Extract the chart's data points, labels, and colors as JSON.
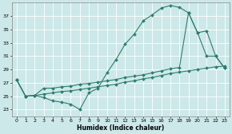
{
  "xlabel": "Humidex (Indice chaleur)",
  "bg_color": "#cce8e8",
  "grid_color": "#ffffff",
  "line_color": "#2e7d6e",
  "x_ticks": [
    0,
    1,
    2,
    3,
    4,
    5,
    6,
    7,
    8,
    9,
    10,
    11,
    12,
    13,
    14,
    15,
    16,
    17,
    18,
    19,
    20,
    21,
    22,
    23
  ],
  "y_ticks": [
    23,
    25,
    27,
    29,
    31,
    33,
    35,
    37
  ],
  "xlim": [
    -0.5,
    23.5
  ],
  "ylim": [
    22.0,
    39.0
  ],
  "line1_y": [
    27.5,
    25.0,
    25.1,
    24.8,
    24.3,
    24.1,
    23.8,
    23.0,
    25.5,
    26.2,
    28.5,
    30.5,
    32.8,
    34.3,
    36.3,
    37.2,
    38.2,
    38.6,
    38.3,
    37.5,
    34.5,
    31.0,
    31.0,
    29.2
  ],
  "line2_y": [
    27.5,
    25.0,
    25.1,
    25.3,
    25.5,
    25.7,
    25.8,
    26.0,
    26.2,
    26.4,
    26.6,
    26.8,
    27.1,
    27.3,
    27.6,
    27.8,
    28.1,
    28.4,
    28.6,
    28.8,
    29.0,
    29.2,
    29.4,
    29.5
  ],
  "line3_y": [
    27.5,
    25.0,
    25.1,
    26.2,
    26.2,
    26.4,
    26.5,
    26.8,
    26.9,
    27.1,
    27.3,
    27.5,
    27.8,
    28.0,
    28.2,
    28.5,
    28.8,
    29.1,
    29.3,
    37.5,
    34.5,
    34.8,
    31.0,
    29.2
  ]
}
